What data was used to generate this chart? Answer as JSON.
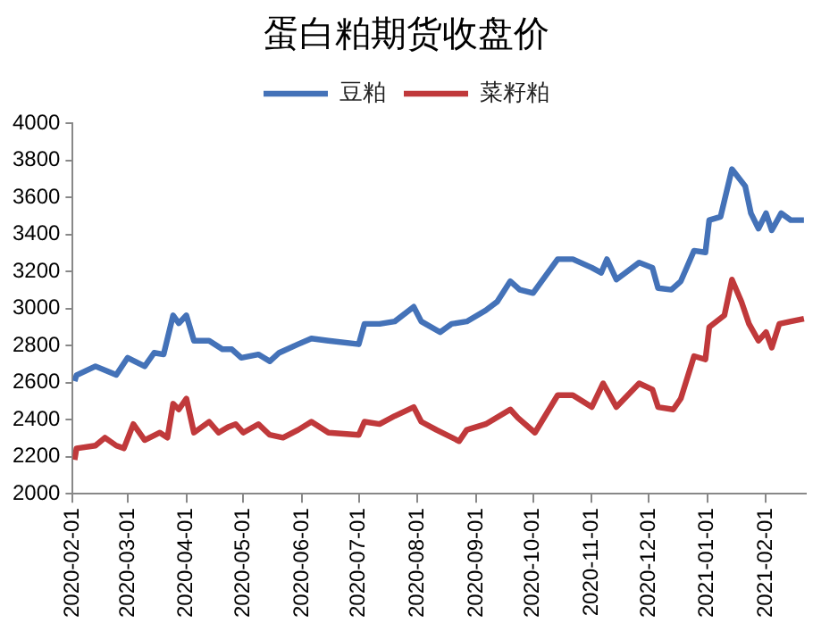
{
  "chart_data": {
    "type": "line",
    "title": "蛋白粕期货收盘价",
    "legend": "top",
    "grid": false,
    "marker": "none",
    "xlim": [
      "2020-02-01",
      "2021-02-22"
    ],
    "xticks": [
      {
        "value": "2020-02-01",
        "label": "2020-02-01"
      },
      {
        "value": "2020-03-01",
        "label": "2020-03-01"
      },
      {
        "value": "2020-04-01",
        "label": "2020-04-01"
      },
      {
        "value": "2020-05-01",
        "label": "2020-05-01"
      },
      {
        "value": "2020-06-01",
        "label": "2020-06-01"
      },
      {
        "value": "2020-07-01",
        "label": "2020-07-01"
      },
      {
        "value": "2020-08-01",
        "label": "2020-08-01"
      },
      {
        "value": "2020-09-01",
        "label": "2020-09-01"
      },
      {
        "value": "2020-10-01",
        "label": "2020-10-01"
      },
      {
        "value": "2020-11-01",
        "label": "2020-11-01"
      },
      {
        "value": "2020-12-01",
        "label": "2020-12-01"
      },
      {
        "value": "2021-01-01",
        "label": "2021-01-01"
      },
      {
        "value": "2021-02-01",
        "label": "2021-02-01"
      }
    ],
    "ylim": [
      2000,
      4000
    ],
    "yticks": [
      2000,
      2200,
      2400,
      2600,
      2800,
      3000,
      3200,
      3400,
      3600,
      3800,
      4000
    ],
    "series": [
      {
        "name": "豆粕",
        "color": "#4472b8",
        "x": [
          "2020-02-02",
          "2020-02-03",
          "2020-02-13",
          "2020-02-24",
          "2020-03-01",
          "2020-03-10",
          "2020-03-15",
          "2020-03-20",
          "2020-03-25",
          "2020-03-28",
          "2020-04-01",
          "2020-04-05",
          "2020-04-13",
          "2020-04-20",
          "2020-04-25",
          "2020-04-30",
          "2020-05-09",
          "2020-05-15",
          "2020-05-20",
          "2020-05-30",
          "2020-06-06",
          "2020-06-15",
          "2020-07-01",
          "2020-07-04",
          "2020-07-12",
          "2020-07-20",
          "2020-07-30",
          "2020-08-03",
          "2020-08-13",
          "2020-08-19",
          "2020-08-27",
          "2020-09-06",
          "2020-09-12",
          "2020-09-19",
          "2020-09-24",
          "2020-10-01",
          "2020-10-14",
          "2020-10-22",
          "2020-11-01",
          "2020-11-06",
          "2020-11-09",
          "2020-11-14",
          "2020-11-26",
          "2020-12-03",
          "2020-12-06",
          "2020-12-13",
          "2020-12-18",
          "2020-12-25",
          "2020-12-31",
          "2021-01-02",
          "2021-01-08",
          "2021-01-14",
          "2021-01-21",
          "2021-01-24",
          "2021-01-28",
          "2021-02-01",
          "2021-02-04",
          "2021-02-09",
          "2021-02-14",
          "2021-02-21"
        ],
        "values": [
          2608,
          2640,
          2688,
          2642,
          2734,
          2688,
          2761,
          2752,
          2963,
          2920,
          2963,
          2826,
          2826,
          2780,
          2780,
          2734,
          2752,
          2715,
          2761,
          2807,
          2838,
          2826,
          2807,
          2917,
          2917,
          2930,
          3009,
          2930,
          2872,
          2917,
          2930,
          2990,
          3036,
          3147,
          3101,
          3083,
          3266,
          3266,
          3220,
          3193,
          3266,
          3156,
          3248,
          3220,
          3110,
          3101,
          3147,
          3312,
          3303,
          3477,
          3495,
          3752,
          3660,
          3514,
          3431,
          3514,
          3422,
          3514,
          3477,
          3477
        ]
      },
      {
        "name": "菜籽粕",
        "color": "#c0393b",
        "x": [
          "2020-02-02",
          "2020-02-03",
          "2020-02-13",
          "2020-02-18",
          "2020-02-24",
          "2020-02-28",
          "2020-03-04",
          "2020-03-10",
          "2020-03-18",
          "2020-03-22",
          "2020-03-25",
          "2020-03-28",
          "2020-04-01",
          "2020-04-05",
          "2020-04-13",
          "2020-04-18",
          "2020-04-23",
          "2020-04-27",
          "2020-05-01",
          "2020-05-09",
          "2020-05-15",
          "2020-05-22",
          "2020-05-30",
          "2020-06-06",
          "2020-06-15",
          "2020-07-01",
          "2020-07-04",
          "2020-07-12",
          "2020-07-20",
          "2020-07-30",
          "2020-08-03",
          "2020-08-11",
          "2020-08-23",
          "2020-08-27",
          "2020-09-06",
          "2020-09-19",
          "2020-09-23",
          "2020-10-02",
          "2020-10-14",
          "2020-10-22",
          "2020-11-01",
          "2020-11-07",
          "2020-11-14",
          "2020-11-26",
          "2020-12-03",
          "2020-12-06",
          "2020-12-14",
          "2020-12-18",
          "2020-12-25",
          "2020-12-31",
          "2021-01-02",
          "2021-01-10",
          "2021-01-14",
          "2021-01-19",
          "2021-01-23",
          "2021-01-28",
          "2021-02-01",
          "2021-02-04",
          "2021-02-08",
          "2021-02-14",
          "2021-02-21"
        ],
        "values": [
          2183,
          2245,
          2260,
          2303,
          2260,
          2245,
          2376,
          2290,
          2330,
          2303,
          2486,
          2455,
          2514,
          2330,
          2389,
          2330,
          2360,
          2376,
          2330,
          2376,
          2318,
          2303,
          2345,
          2389,
          2330,
          2318,
          2389,
          2376,
          2420,
          2468,
          2389,
          2345,
          2284,
          2345,
          2376,
          2455,
          2410,
          2330,
          2532,
          2532,
          2468,
          2596,
          2468,
          2596,
          2563,
          2468,
          2455,
          2514,
          2743,
          2725,
          2899,
          2963,
          3156,
          3037,
          2917,
          2826,
          2872,
          2789,
          2917,
          2930,
          2945
        ]
      }
    ]
  }
}
